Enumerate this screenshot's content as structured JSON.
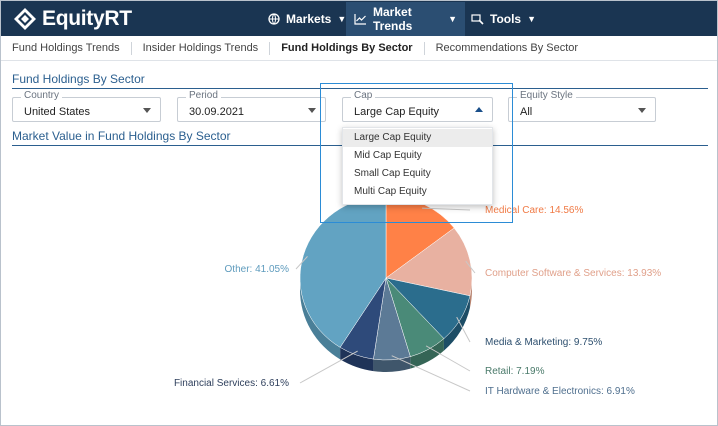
{
  "app": {
    "brand": "EquityRT"
  },
  "nav": {
    "markets": "Markets",
    "market_trends": "Market Trends",
    "tools": "Tools"
  },
  "subtabs": [
    "Fund Holdings Trends",
    "Insider Holdings Trends",
    "Fund Holdings By Sector",
    "Recommendations By Sector"
  ],
  "active_subtab": "Fund Holdings By Sector",
  "section_title": "Fund Holdings By Sector",
  "filters": {
    "country": {
      "label": "Country",
      "value": "United States"
    },
    "period": {
      "label": "Period",
      "value": "30.09.2021"
    },
    "cap": {
      "label": "Cap",
      "value": "Large Cap Equity",
      "options": [
        "Large Cap Equity",
        "Mid Cap Equity",
        "Small Cap Equity",
        "Multi Cap Equity"
      ]
    },
    "equity_style": {
      "label": "Equity Style",
      "value": "All"
    }
  },
  "chart_title": "Market Value in Fund Holdings By Sector",
  "colors": {
    "header_bg": "#1a3552",
    "active_nav_bg": "#2b4e72",
    "accent": "#2b5f8f",
    "dropdown_border": "#2b8cd6"
  },
  "chart_data": {
    "type": "pie",
    "title": "Market Value in Fund Holdings By Sector",
    "slices": [
      {
        "name": "Medical Care",
        "value": 14.56,
        "label": "Medical Care: 14.56%",
        "color": "#ff8147",
        "side_color": "#c25a28",
        "label_color": "#f07a45"
      },
      {
        "name": "Computer Software & Services",
        "value": 13.93,
        "label": "Computer Software & Services: 13.93%",
        "color": "#e8b1a1",
        "side_color": "#b7836f",
        "label_color": "#e0a08a"
      },
      {
        "name": "Media & Marketing",
        "value": 9.75,
        "label": "Media & Marketing: 9.75%",
        "color": "#2b6d8d",
        "side_color": "#1d4d66",
        "label_color": "#2d4f6e"
      },
      {
        "name": "Retail",
        "value": 7.19,
        "label": "Retail: 7.19%",
        "color": "#4a8a78",
        "side_color": "#356556",
        "label_color": "#4a7a6a"
      },
      {
        "name": "IT Hardware & Electronics",
        "value": 6.91,
        "label": "IT Hardware & Electronics: 6.91%",
        "color": "#5c7a96",
        "side_color": "#3f566b",
        "label_color": "#4f6f8e"
      },
      {
        "name": "Financial Services",
        "value": 6.61,
        "label": "Financial Services: 6.61%",
        "color": "#2e4a7a",
        "side_color": "#1f3358",
        "label_color": "#2e3f5c"
      },
      {
        "name": "Other",
        "value": 41.05,
        "label": "Other: 41.05%",
        "color": "#62a3c2",
        "side_color": "#4a7f98",
        "label_color": "#5e9bbd"
      }
    ]
  }
}
